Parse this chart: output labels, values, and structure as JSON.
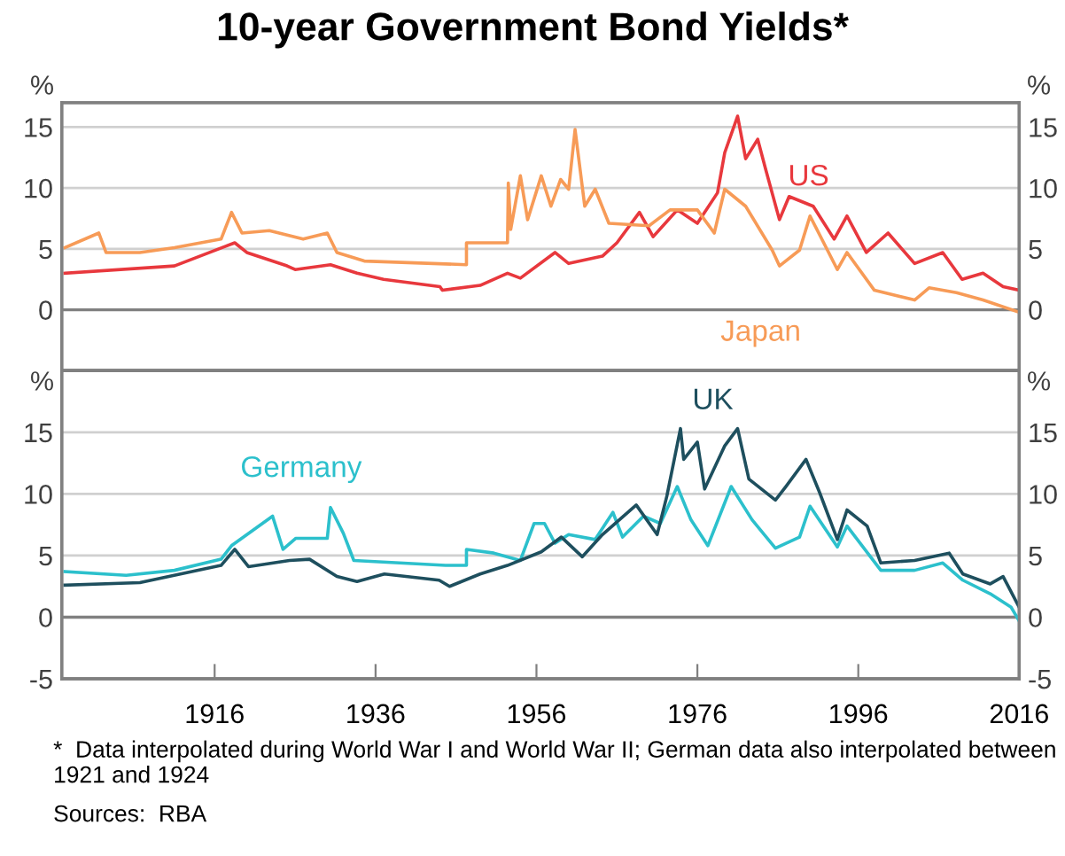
{
  "chart_data": [
    {
      "type": "line",
      "title": "10-year Government Bond Yields*",
      "ylabel": "%",
      "y2label": "%",
      "xlim": [
        1897,
        2016
      ],
      "ylim": [
        -5,
        17
      ],
      "yticks": [
        0,
        5,
        10,
        15
      ],
      "y2lim": [
        -5,
        17
      ],
      "y2ticks": [
        0,
        5,
        10,
        15
      ],
      "tick_labels": "y",
      "grid": "y",
      "ref_lines": [
        {
          "axis": "y",
          "value": 0,
          "color": "#808080"
        }
      ],
      "series": [
        {
          "name": "US",
          "color": "#e8383d",
          "x": [
            1897.4,
            1911,
            1918.5,
            1920,
            1925,
            1926,
            1930.4,
            1933.7,
            1937,
            1944,
            1944.3,
            1949,
            1952.4,
            1954,
            1958.3,
            1960,
            1964.2,
            1966,
            1968.8,
            1970.5,
            1973.5,
            1976,
            1978.5,
            1979.4,
            1981,
            1982,
            1983.5,
            1984.5,
            1986.2,
            1987.4,
            1990.4,
            1993,
            1994.6,
            1997,
            1999.7,
            2003,
            2006.5,
            2008.9,
            2011.5,
            2014,
            2016
          ],
          "values": [
            3.0,
            3.6,
            5.5,
            4.7,
            3.6,
            3.3,
            3.7,
            3.0,
            2.5,
            1.9,
            1.6,
            2.0,
            3.0,
            2.6,
            4.7,
            3.8,
            4.4,
            5.5,
            8.0,
            6.0,
            8.2,
            7.1,
            9.6,
            12.9,
            15.9,
            12.4,
            14.0,
            11.5,
            7.4,
            9.3,
            8.5,
            5.8,
            7.7,
            4.7,
            6.3,
            3.8,
            4.7,
            2.5,
            3.0,
            1.9,
            1.6
          ]
        },
        {
          "name": "Japan",
          "color": "#f79b57",
          "x": [
            1897.4,
            1901.6,
            1902.5,
            1906.7,
            1911,
            1916.8,
            1918.1,
            1919.4,
            1922.8,
            1927,
            1930,
            1931.2,
            1934.6,
            1947.3,
            1947.3,
            1952.4,
            1952.5,
            1952.8,
            1954,
            1954.9,
            1956.6,
            1957.8,
            1959,
            1960,
            1960.8,
            1962,
            1963.3,
            1965,
            1970,
            1972.6,
            1976,
            1978.1,
            1979.4,
            1982,
            1985.3,
            1986.2,
            1988.7,
            1990,
            1993.4,
            1994.6,
            1998,
            2003,
            2004.8,
            2008.2,
            2011.5,
            2016
          ],
          "values": [
            5.1,
            6.3,
            4.7,
            4.7,
            5.1,
            5.8,
            8.0,
            6.3,
            6.5,
            5.8,
            6.3,
            4.7,
            4.0,
            3.7,
            5.5,
            5.5,
            10.4,
            6.6,
            11.0,
            7.4,
            11.0,
            8.5,
            10.7,
            9.9,
            14.8,
            8.5,
            9.9,
            7.1,
            6.9,
            8.2,
            8.2,
            6.3,
            9.9,
            8.5,
            4.9,
            3.6,
            4.9,
            7.7,
            3.3,
            4.7,
            1.6,
            0.8,
            1.8,
            1.4,
            0.8,
            -0.2
          ]
        }
      ]
    },
    {
      "type": "line",
      "ylabel": "%",
      "y2label": "%",
      "xlim": [
        1897,
        2016
      ],
      "xticks": [
        1916,
        1936,
        1956,
        1976,
        1996,
        2016
      ],
      "ylim": [
        -5,
        20
      ],
      "yticks": [
        -5,
        0,
        5,
        10,
        15
      ],
      "y2lim": [
        -5,
        20
      ],
      "y2ticks": [
        -5,
        0,
        5,
        10,
        15
      ],
      "grid": "y",
      "ref_lines": [
        {
          "axis": "y",
          "value": 0,
          "color": "#808080"
        }
      ],
      "annotations": [
        "*  Data interpolated during World War I and World War II; German data also interpolated between 1921 and 1924",
        "Sources:  RBA"
      ],
      "series": [
        {
          "name": "Germany",
          "color": "#2cc0cc",
          "x": [
            1897.4,
            1905,
            1911,
            1916.8,
            1918.1,
            1923.2,
            1924.5,
            1926.1,
            1930,
            1930.4,
            1932,
            1933.3,
            1944.7,
            1947.3,
            1947.3,
            1950.7,
            1954,
            1955.7,
            1957,
            1958.3,
            1960,
            1963.3,
            1965.5,
            1966.7,
            1969.3,
            1971.4,
            1973.5,
            1975.2,
            1977.3,
            1980.2,
            1982.8,
            1985.7,
            1988.7,
            1990,
            1993.4,
            1994.6,
            1998.8,
            2003,
            2006.5,
            2009,
            2012.4,
            2015,
            2016
          ],
          "values": [
            3.7,
            3.4,
            3.8,
            4.7,
            5.8,
            8.2,
            5.5,
            6.4,
            6.4,
            8.9,
            6.8,
            4.6,
            4.2,
            4.2,
            5.5,
            5.2,
            4.6,
            7.6,
            7.6,
            6.0,
            6.7,
            6.3,
            8.5,
            6.5,
            8.2,
            7.6,
            10.6,
            7.9,
            5.8,
            10.6,
            7.9,
            5.6,
            6.5,
            9.0,
            5.7,
            7.4,
            3.8,
            3.8,
            4.4,
            3.0,
            1.9,
            0.8,
            -0.3
          ]
        },
        {
          "name": "UK",
          "color": "#1e4f5e",
          "x": [
            1897.4,
            1906.7,
            1916.8,
            1918.5,
            1920.2,
            1925.3,
            1927.8,
            1931.2,
            1933.7,
            1937.1,
            1943.9,
            1945.2,
            1949,
            1952.4,
            1956.6,
            1959.1,
            1961.7,
            1964.2,
            1968.4,
            1971,
            1972.2,
            1973.9,
            1974.3,
            1976,
            1976.9,
            1979.4,
            1981,
            1982.4,
            1985.7,
            1987,
            1989.5,
            1991.2,
            1993.4,
            1994.6,
            1997.1,
            1998.8,
            2003,
            2007.3,
            2009,
            2012.4,
            2014,
            2016
          ],
          "values": [
            2.6,
            2.8,
            4.2,
            5.5,
            4.1,
            4.6,
            4.7,
            3.3,
            2.9,
            3.5,
            3.0,
            2.5,
            3.5,
            4.2,
            5.3,
            6.5,
            4.9,
            6.7,
            9.1,
            6.7,
            9.8,
            15.3,
            12.8,
            14.2,
            10.4,
            13.9,
            15.3,
            11.2,
            9.5,
            10.6,
            12.8,
            10.1,
            6.3,
            8.7,
            7.4,
            4.4,
            4.6,
            5.2,
            3.5,
            2.7,
            3.3,
            0.8
          ]
        }
      ]
    }
  ]
}
